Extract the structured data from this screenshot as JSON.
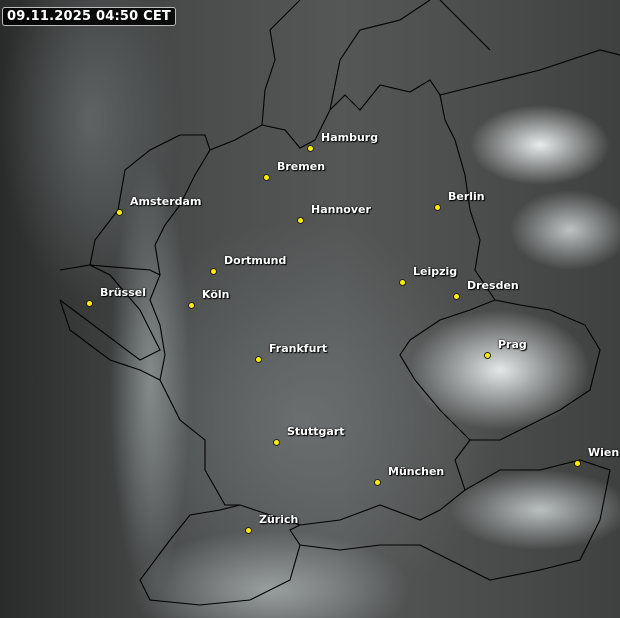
{
  "timestamp": "09.11.2025 04:50 CET",
  "colors": {
    "city_dot": "#ffee00",
    "border": "#000000",
    "label": "#ffffff"
  },
  "cities": [
    {
      "name": "Hamburg"
    },
    {
      "name": "Bremen"
    },
    {
      "name": "Amsterdam"
    },
    {
      "name": "Hannover"
    },
    {
      "name": "Berlin"
    },
    {
      "name": "Dortmund"
    },
    {
      "name": "Leipzig"
    },
    {
      "name": "Dresden"
    },
    {
      "name": "Brüssel"
    },
    {
      "name": "Köln"
    },
    {
      "name": "Prag"
    },
    {
      "name": "Frankfurt"
    },
    {
      "name": "Stuttgart"
    },
    {
      "name": "München"
    },
    {
      "name": "Wien"
    },
    {
      "name": "Zürich"
    }
  ]
}
